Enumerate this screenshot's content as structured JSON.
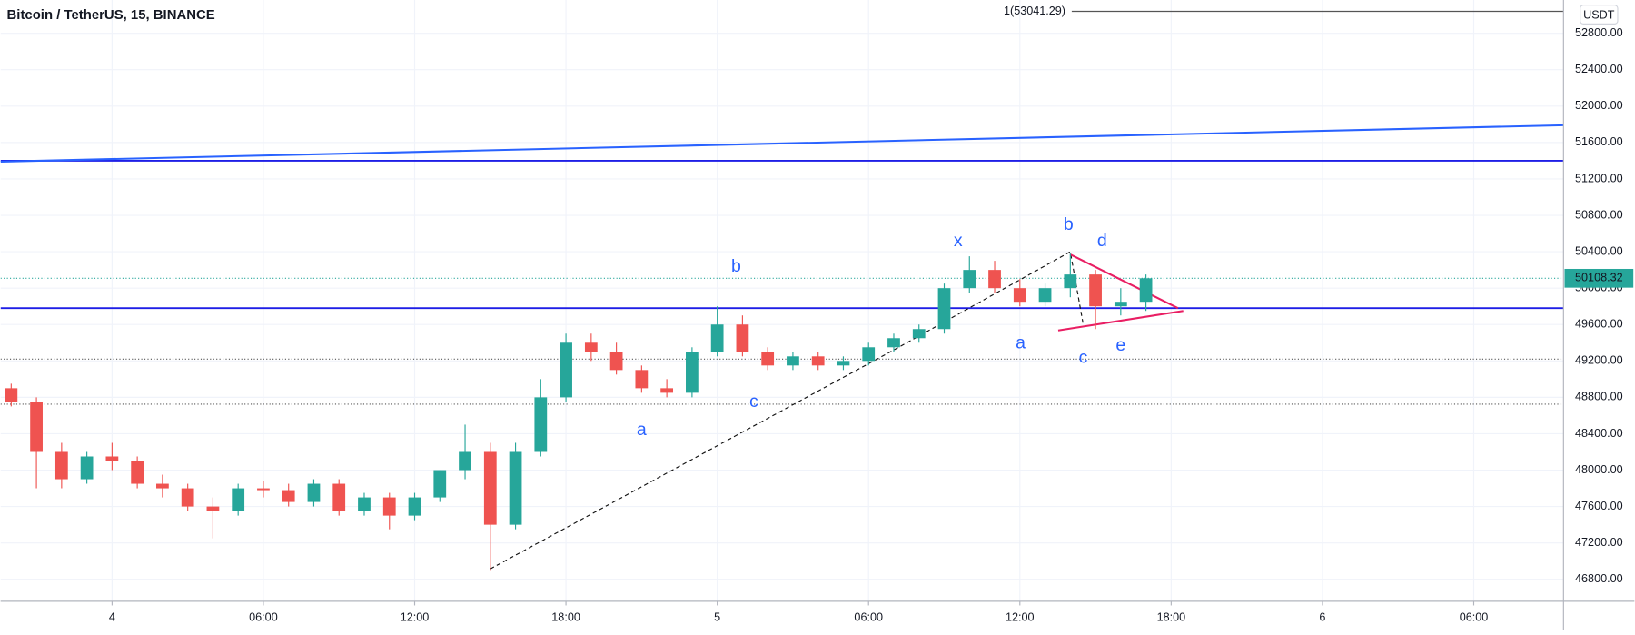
{
  "chart_data": {
    "type": "candlestick",
    "title": "Bitcoin / TetherUS, 15, BINANCE",
    "currency": "USDT",
    "last_price": 50108.32,
    "last_price_label": "50108.32",
    "up_color": "#26a69a",
    "down_color": "#ef5350",
    "xlim": [
      -4.42,
      57.56
    ],
    "ylim": [
      46559,
      53166
    ],
    "xticks": [
      {
        "value": 0,
        "label": "4"
      },
      {
        "value": 6,
        "label": "06:00"
      },
      {
        "value": 12,
        "label": "12:00"
      },
      {
        "value": 18,
        "label": "18:00"
      },
      {
        "value": 24,
        "label": "5"
      },
      {
        "value": 30,
        "label": "06:00"
      },
      {
        "value": 36,
        "label": "12:00"
      },
      {
        "value": 42,
        "label": "18:00"
      },
      {
        "value": 48,
        "label": "6"
      },
      {
        "value": 54,
        "label": "06:00"
      }
    ],
    "yticks": [
      {
        "value": 46800,
        "label": "46800.00"
      },
      {
        "value": 47200,
        "label": "47200.00"
      },
      {
        "value": 47600,
        "label": "47600.00"
      },
      {
        "value": 48000,
        "label": "48000.00"
      },
      {
        "value": 48400,
        "label": "48400.00"
      },
      {
        "value": 48800,
        "label": "48800.00"
      },
      {
        "value": 49200,
        "label": "49200.00"
      },
      {
        "value": 49600,
        "label": "49600.00"
      },
      {
        "value": 50000,
        "label": "50000.00"
      },
      {
        "value": 50400,
        "label": "50400.00"
      },
      {
        "value": 50800,
        "label": "50800.00"
      },
      {
        "value": 51200,
        "label": "51200.00"
      },
      {
        "value": 51600,
        "label": "51600.00"
      },
      {
        "value": 52000,
        "label": "52000.00"
      },
      {
        "value": 52400,
        "label": "52400.00"
      },
      {
        "value": 52800,
        "label": "52800.00"
      }
    ],
    "grid": true,
    "x": [
      -4,
      -3,
      -2,
      -1,
      0,
      1,
      2,
      3,
      4,
      5,
      6,
      7,
      8,
      9,
      10,
      11,
      12,
      13,
      14,
      15,
      16,
      17,
      18,
      19,
      20,
      21,
      22,
      23,
      24,
      25,
      26,
      27,
      28,
      29,
      30,
      31,
      32,
      33,
      34,
      35,
      36,
      37,
      38,
      39,
      40,
      41
    ],
    "open": [
      48900,
      48750,
      48200,
      47900,
      48150,
      48100,
      47850,
      47800,
      47600,
      47550,
      47800,
      47780,
      47650,
      47850,
      47550,
      47700,
      47500,
      47700,
      48000,
      48200,
      47400,
      48200,
      48800,
      49400,
      49300,
      49100,
      48900,
      48850,
      49300,
      49600,
      49300,
      49150,
      49250,
      49150,
      49200,
      49350,
      49450,
      49550,
      50000,
      50200,
      50000,
      49850,
      50000,
      50150,
      49800,
      49850
    ],
    "high": [
      48950,
      48800,
      48300,
      48200,
      48300,
      48150,
      47950,
      47850,
      47700,
      47850,
      47880,
      47850,
      47900,
      47900,
      47750,
      47750,
      47750,
      48000,
      48500,
      48300,
      48300,
      49000,
      49500,
      49500,
      49400,
      49150,
      49000,
      49350,
      49800,
      49700,
      49350,
      49300,
      49300,
      49250,
      49400,
      49500,
      49600,
      50050,
      50350,
      50300,
      50100,
      50050,
      50380,
      50200,
      50000,
      50150
    ],
    "low": [
      48700,
      47800,
      47800,
      47850,
      48000,
      47800,
      47700,
      47550,
      47250,
      47500,
      47700,
      47600,
      47600,
      47500,
      47500,
      47350,
      47450,
      47650,
      47900,
      46900,
      47350,
      48150,
      48750,
      49200,
      49050,
      48850,
      48800,
      48800,
      49250,
      49250,
      49100,
      49100,
      49100,
      49100,
      49150,
      49300,
      49400,
      49500,
      49950,
      49950,
      49800,
      49800,
      49900,
      49550,
      49700,
      49750
    ],
    "close": [
      48750,
      48200,
      47900,
      48150,
      48100,
      47850,
      47800,
      47600,
      47550,
      47800,
      47780,
      47650,
      47850,
      47550,
      47700,
      47500,
      47700,
      48000,
      48200,
      47400,
      48200,
      48800,
      49400,
      49300,
      49100,
      48900,
      48850,
      49300,
      49600,
      49300,
      49150,
      49250,
      49150,
      49200,
      49350,
      49450,
      49550,
      50000,
      50200,
      50000,
      49850,
      50000,
      50150,
      49800,
      49850,
      50108.32
    ],
    "hlines": [
      {
        "value": 51400,
        "color": "#1e1ee6",
        "dash": false
      },
      {
        "value": 49780,
        "color": "#1e1ee6",
        "dash": false
      },
      {
        "value": 49220,
        "color": "#555",
        "dash": true
      },
      {
        "value": 48725,
        "color": "#555",
        "dash": true
      }
    ],
    "target_line": {
      "value": 53041.29,
      "label": "1(53041.29)"
    },
    "segments": [
      {
        "color": "#2962ff",
        "dash": false,
        "x": [
          -4.42,
          57.56
        ],
        "y": [
          51390,
          51790
        ]
      },
      {
        "color": "#111",
        "dash": true,
        "x": [
          15,
          31,
          38,
          38.5
        ],
        "y": [
          46915,
          49320,
          50400,
          49620
        ]
      },
      {
        "color": "#e91e63",
        "dash": false,
        "x": [
          38,
          42.27
        ],
        "y": [
          50370,
          49780
        ]
      },
      {
        "color": "#e91e63",
        "dash": false,
        "x": [
          37.52,
          42.48
        ],
        "y": [
          49535,
          49750
        ]
      }
    ],
    "annotations": [
      {
        "text": "b",
        "x": 24.75,
        "y": 50235
      },
      {
        "text": "a",
        "x": 21,
        "y": 48437
      },
      {
        "text": "c",
        "x": 25.45,
        "y": 48746
      },
      {
        "text": "x",
        "x": 33.55,
        "y": 50510
      },
      {
        "text": "b",
        "x": 37.93,
        "y": 50693
      },
      {
        "text": "d",
        "x": 39.26,
        "y": 50510
      },
      {
        "text": "a",
        "x": 36.03,
        "y": 49388
      },
      {
        "text": "c",
        "x": 38.51,
        "y": 49227
      },
      {
        "text": "e",
        "x": 40,
        "y": 49365
      }
    ]
  }
}
